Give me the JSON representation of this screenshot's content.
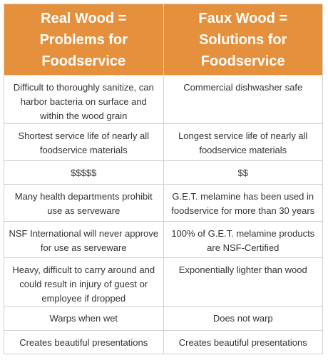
{
  "table": {
    "headers": [
      "Real Wood = Problems for Foodservice",
      "Faux Wood = Solutions for Foodservice"
    ],
    "rows": [
      [
        "Difficult to thoroughly sanitize, can harbor bacteria on surface and within the wood grain",
        "Commercial dishwasher safe"
      ],
      [
        "Shortest service life of nearly all foodservice materials",
        "Longest service life of nearly all foodservice materials"
      ],
      [
        "$$$$$",
        "$$"
      ],
      [
        "Many health departments prohibit use as serveware",
        "G.E.T. melamine has been used in foodservice for more than 30 years"
      ],
      [
        "NSF International will never approve for use as serveware",
        "100% of G.E.T. melamine products are NSF-Certified"
      ],
      [
        "Heavy, difficult to carry around and could result in injury of guest or employee if dropped",
        "Exponentially lighter than wood"
      ],
      [
        "Warps when wet",
        "Does not warp"
      ],
      [
        "Creates beautiful presentations",
        "Creates beautiful presentations"
      ]
    ]
  },
  "colors": {
    "header_bg": "#e5903c",
    "header_text": "#ffffff",
    "body_text": "#333333",
    "border": "#cfcfcf"
  }
}
